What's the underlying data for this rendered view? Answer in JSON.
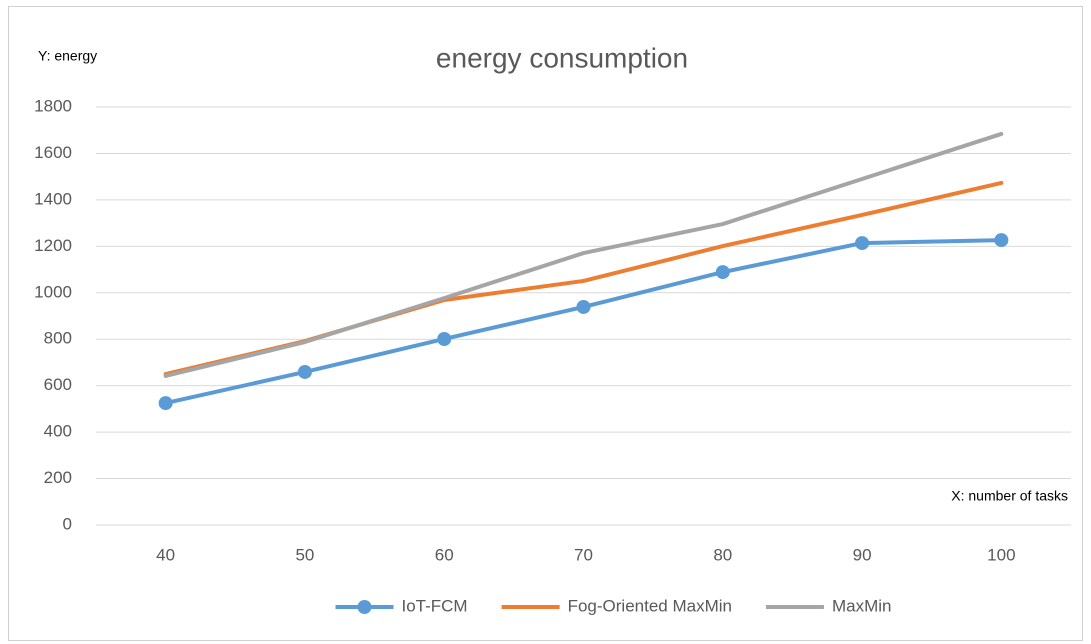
{
  "chart_data": {
    "type": "line",
    "title": "energy consumption",
    "y_label": "Y: energy",
    "x_label": "X: number of tasks",
    "categories": [
      40,
      50,
      60,
      70,
      80,
      90,
      100
    ],
    "series": [
      {
        "name": "IoT-FCM",
        "color": "#5b9bd5",
        "markers": true,
        "values": [
          525,
          659,
          801,
          939,
          1089,
          1214,
          1227
        ]
      },
      {
        "name": "Fog-Oriented MaxMin",
        "color": "#ed7d31",
        "markers": false,
        "values": [
          650,
          792,
          969,
          1051,
          1201,
          1335,
          1473
        ]
      },
      {
        "name": "MaxMin",
        "color": "#a5a5a5",
        "markers": false,
        "values": [
          642,
          788,
          977,
          1171,
          1296,
          1490,
          1684
        ]
      }
    ],
    "ylim": [
      0,
      1800
    ],
    "yticks": [
      0,
      200,
      400,
      600,
      800,
      1000,
      1200,
      1400,
      1600,
      1800
    ],
    "grid": true,
    "legend": "bottom"
  }
}
